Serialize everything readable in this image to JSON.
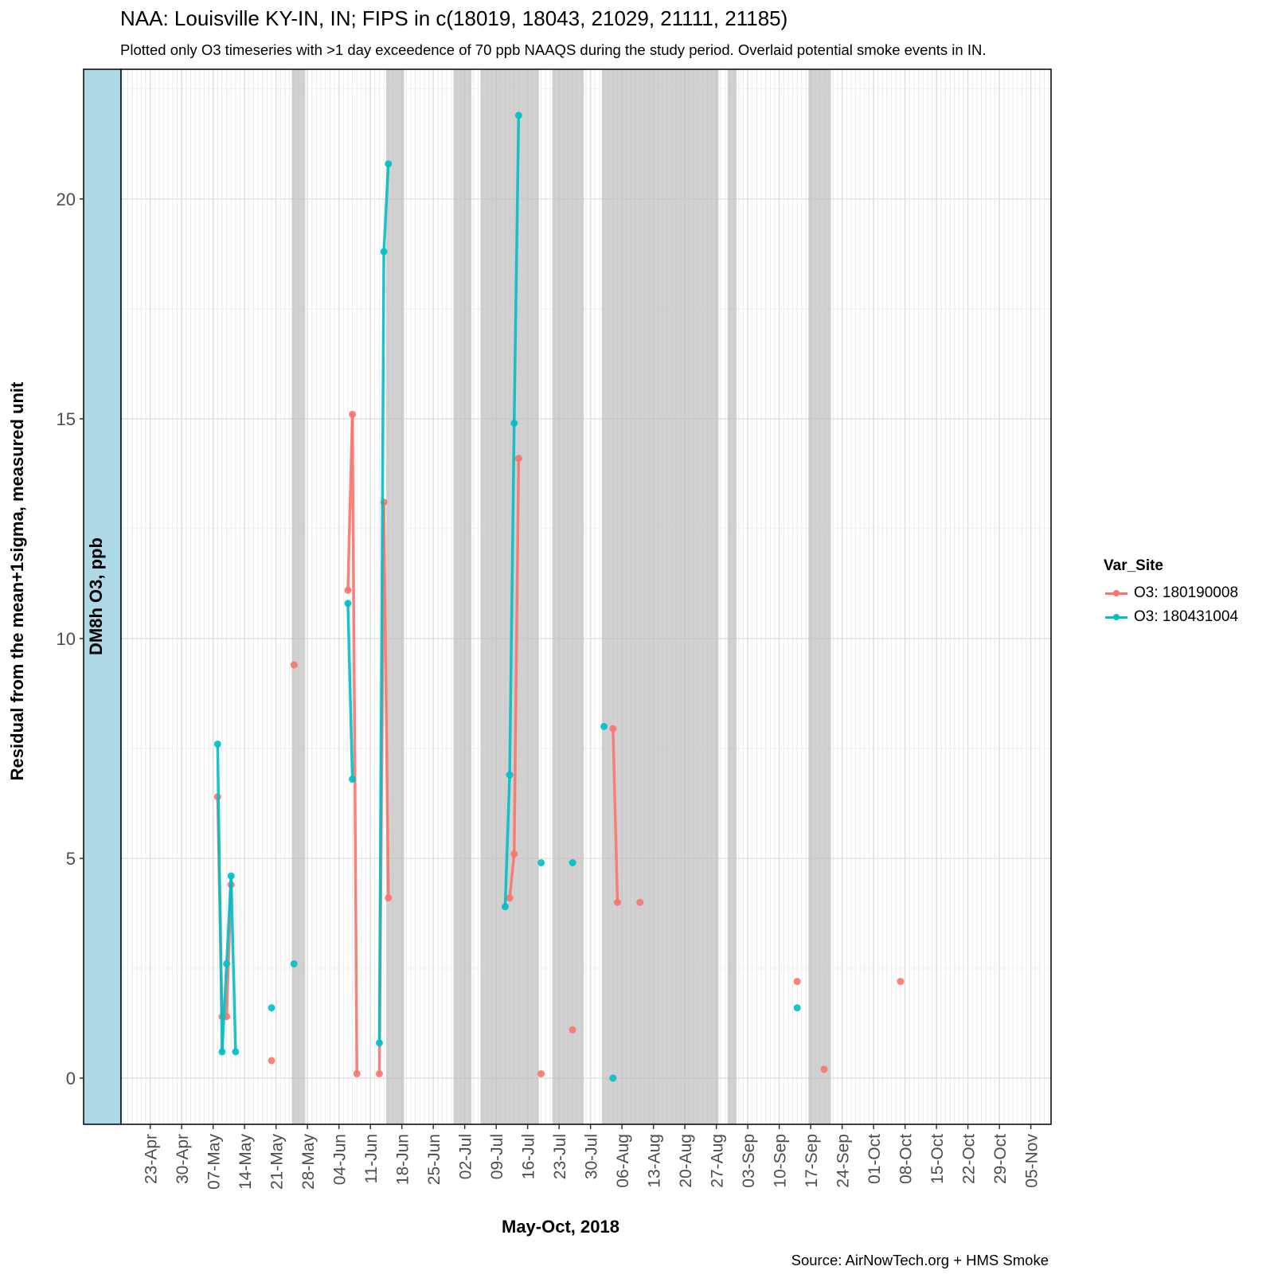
{
  "chart_data": {
    "type": "line",
    "title": "NAA: Louisville KY-IN, IN; FIPS in c(18019, 18043, 21029, 21111, 21185)",
    "subtitle": "Plotted only O3 timeseries with >1 day exceedence of 70 ppb NAAQS during the study period. Overlaid potential smoke events in IN.",
    "caption": "Source: AirNowTech.org + HMS Smoke",
    "xlabel": "May-Oct, 2018",
    "ylabel": "Residual from the mean+1sigma, measured unit",
    "facet_label": "DM8h O3, ppb",
    "x_start_date": "2018-04-23",
    "xlim_days": [
      -6.5,
      200.5
    ],
    "ylim": [
      -1.05,
      22.95
    ],
    "y_ticks": [
      0,
      5,
      10,
      15,
      20
    ],
    "x_ticks": [
      "23-Apr",
      "30-Apr",
      "07-May",
      "14-May",
      "21-May",
      "28-May",
      "04-Jun",
      "11-Jun",
      "18-Jun",
      "25-Jun",
      "02-Jul",
      "09-Jul",
      "16-Jul",
      "23-Jul",
      "30-Jul",
      "06-Aug",
      "13-Aug",
      "20-Aug",
      "27-Aug",
      "03-Sep",
      "10-Sep",
      "17-Sep",
      "24-Sep",
      "01-Oct",
      "08-Oct",
      "15-Oct",
      "22-Oct",
      "29-Oct",
      "05-Nov"
    ],
    "grid": true,
    "legend": {
      "title": "Var_Site",
      "position": "right"
    },
    "smoke_events_days": [
      [
        32,
        34
      ],
      [
        53,
        56
      ],
      [
        68,
        69
      ],
      [
        70,
        71
      ],
      [
        74,
        79
      ],
      [
        80,
        86
      ],
      [
        90,
        96
      ],
      [
        101,
        106
      ],
      [
        107,
        109
      ],
      [
        110,
        126
      ],
      [
        129,
        130
      ],
      [
        147,
        151
      ]
    ],
    "series": [
      {
        "name": "O3: 180190008",
        "color": "#F8766D",
        "points": [
          {
            "day": 15,
            "value": 6.4
          },
          {
            "day": 16,
            "value": 1.4
          },
          {
            "day": 17,
            "value": 1.4
          },
          {
            "day": 18,
            "value": 4.4
          },
          {
            "day": 27,
            "value": 0.4
          },
          {
            "day": 32,
            "value": 9.4
          },
          {
            "day": 44,
            "value": 11.1
          },
          {
            "day": 45,
            "value": 15.1
          },
          {
            "day": 46,
            "value": 0.1
          },
          {
            "day": 51,
            "value": 0.1
          },
          {
            "day": 52,
            "value": 13.1
          },
          {
            "day": 53,
            "value": 4.1
          },
          {
            "day": 80,
            "value": 4.1
          },
          {
            "day": 81,
            "value": 5.1
          },
          {
            "day": 82,
            "value": 14.1
          },
          {
            "day": 87,
            "value": 0.1
          },
          {
            "day": 94,
            "value": 1.1
          },
          {
            "day": 103,
            "value": 7.95
          },
          {
            "day": 104,
            "value": 4.0
          },
          {
            "day": 109,
            "value": 4.0
          },
          {
            "day": 144,
            "value": 2.2
          },
          {
            "day": 150,
            "value": 0.2
          },
          {
            "day": 167,
            "value": 2.2
          }
        ]
      },
      {
        "name": "O3: 180431004",
        "color": "#00BFC4",
        "points": [
          {
            "day": 15,
            "value": 7.6
          },
          {
            "day": 16,
            "value": 0.6
          },
          {
            "day": 17,
            "value": 2.6
          },
          {
            "day": 18,
            "value": 4.6
          },
          {
            "day": 19,
            "value": 0.6
          },
          {
            "day": 27,
            "value": 1.6
          },
          {
            "day": 32,
            "value": 2.6
          },
          {
            "day": 44,
            "value": 10.8
          },
          {
            "day": 45,
            "value": 6.8
          },
          {
            "day": 51,
            "value": 0.8
          },
          {
            "day": 52,
            "value": 18.8
          },
          {
            "day": 53,
            "value": 20.8
          },
          {
            "day": 79,
            "value": 3.9
          },
          {
            "day": 80,
            "value": 6.9
          },
          {
            "day": 81,
            "value": 14.9
          },
          {
            "day": 82,
            "value": 21.9
          },
          {
            "day": 87,
            "value": 4.9
          },
          {
            "day": 94,
            "value": 4.9
          },
          {
            "day": 101,
            "value": 8.0
          },
          {
            "day": 103,
            "value": 0.0
          },
          {
            "day": 144,
            "value": 1.6
          }
        ]
      }
    ]
  }
}
